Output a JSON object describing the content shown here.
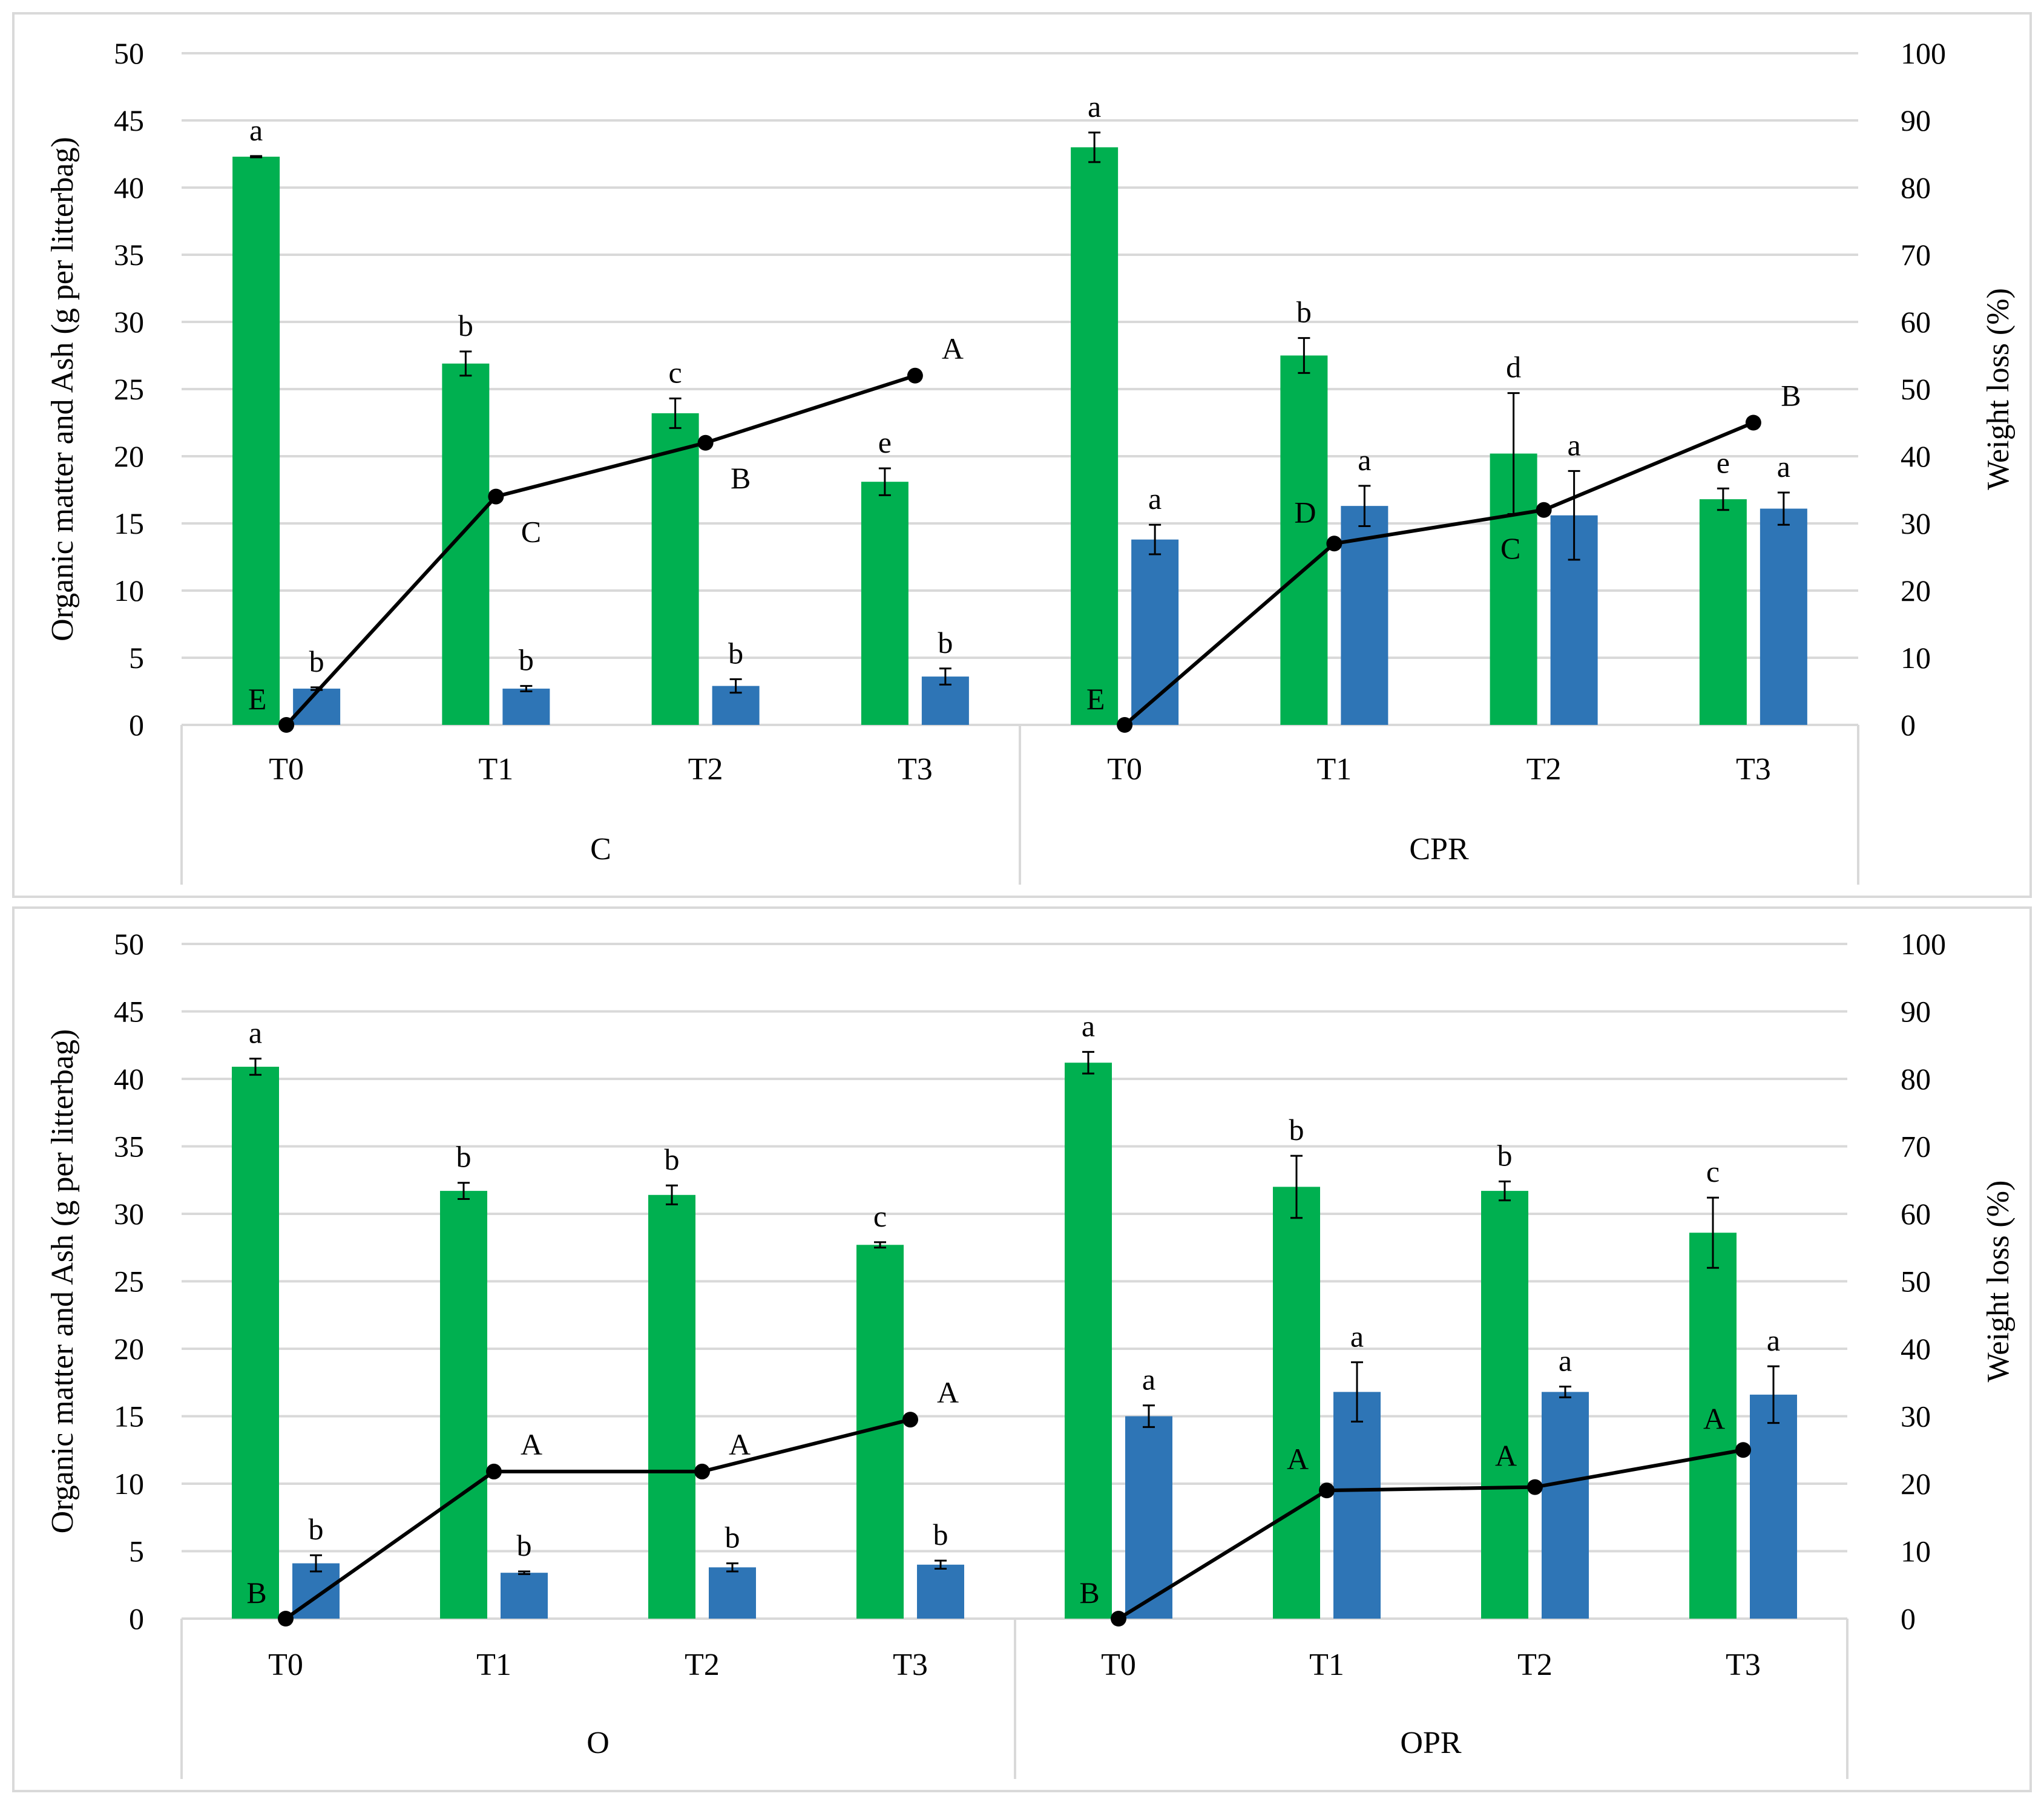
{
  "colors": {
    "organic_matter": "#00b050",
    "ash": "#2e75b6",
    "weight_loss": "#000000",
    "grid": "#d9d9d9"
  },
  "chart_data": [
    {
      "type": "bar",
      "panel": "top",
      "ylabel": "Organic matter and Ash (g per litterbag)",
      "y2label": "Weight loss (%)",
      "ylim": [
        0,
        50
      ],
      "y2lim": [
        0,
        100
      ],
      "yticks": [
        "0",
        "5",
        "10",
        "15",
        "20",
        "25",
        "30",
        "35",
        "40",
        "45",
        "50"
      ],
      "y2ticks": [
        "0",
        "10",
        "20",
        "30",
        "40",
        "50",
        "60",
        "70",
        "80",
        "90",
        "100"
      ],
      "groups": [
        {
          "name": "C",
          "categories": [
            "T0",
            "T1",
            "T2",
            "T3"
          ],
          "series": [
            {
              "name": "Organic matter",
              "axis": "left",
              "values": [
                42.3,
                26.9,
                23.2,
                18.1
              ],
              "errors": [
                0.05,
                0.9,
                1.1,
                1.0
              ],
              "letters": [
                "a",
                "b",
                "c",
                "e"
              ]
            },
            {
              "name": "Ash",
              "axis": "left",
              "values": [
                2.7,
                2.7,
                2.9,
                3.6
              ],
              "errors": [
                0.1,
                0.2,
                0.5,
                0.6
              ],
              "letters": [
                "b",
                "b",
                "b",
                "b"
              ]
            },
            {
              "name": "Weight loss",
              "axis": "right",
              "type": "line",
              "values": [
                0,
                34,
                42,
                52
              ],
              "letters": [
                "E",
                "C",
                "B",
                "A"
              ]
            }
          ]
        },
        {
          "name": "CPR",
          "categories": [
            "T0",
            "T1",
            "T2",
            "T3"
          ],
          "series": [
            {
              "name": "Organic matter",
              "axis": "left",
              "values": [
                43.0,
                27.5,
                20.2,
                16.8
              ],
              "errors": [
                1.1,
                1.3,
                4.5,
                0.8
              ],
              "letters": [
                "a",
                "b",
                "d",
                "e"
              ]
            },
            {
              "name": "Ash",
              "axis": "left",
              "values": [
                13.8,
                16.3,
                15.6,
                16.1
              ],
              "errors": [
                1.1,
                1.5,
                3.3,
                1.2
              ],
              "letters": [
                "a",
                "a",
                "a",
                "a"
              ]
            },
            {
              "name": "Weight loss",
              "axis": "right",
              "type": "line",
              "values": [
                0,
                27,
                32,
                45
              ],
              "letters": [
                "E",
                "D",
                "C",
                "B"
              ]
            }
          ]
        }
      ]
    },
    {
      "type": "bar",
      "panel": "bottom",
      "ylabel": "Organic matter and Ash (g per litterbag)",
      "y2label": "Weight loss (%)",
      "ylim": [
        0,
        50
      ],
      "y2lim": [
        0,
        100
      ],
      "yticks": [
        "0",
        "5",
        "10",
        "15",
        "20",
        "25",
        "30",
        "35",
        "40",
        "45",
        "50"
      ],
      "y2ticks": [
        "0",
        "10",
        "20",
        "30",
        "40",
        "50",
        "60",
        "70",
        "80",
        "90",
        "100"
      ],
      "groups": [
        {
          "name": "O",
          "categories": [
            "T0",
            "T1",
            "T2",
            "T3"
          ],
          "series": [
            {
              "name": "Organic matter",
              "axis": "left",
              "values": [
                40.9,
                31.7,
                31.4,
                27.7
              ],
              "errors": [
                0.6,
                0.6,
                0.7,
                0.2
              ],
              "letters": [
                "a",
                "b",
                "b",
                "c"
              ]
            },
            {
              "name": "Ash",
              "axis": "left",
              "values": [
                4.1,
                3.4,
                3.8,
                4.0
              ],
              "errors": [
                0.6,
                0.1,
                0.3,
                0.3
              ],
              "letters": [
                "b",
                "b",
                "b",
                "b"
              ]
            },
            {
              "name": "Weight loss",
              "axis": "right",
              "type": "line",
              "values": [
                0,
                21.8,
                21.8,
                29.5
              ],
              "letters": [
                "B",
                "A",
                "A",
                "A"
              ]
            }
          ]
        },
        {
          "name": "OPR",
          "categories": [
            "T0",
            "T1",
            "T2",
            "T3"
          ],
          "series": [
            {
              "name": "Organic matter",
              "axis": "left",
              "values": [
                41.2,
                32.0,
                31.7,
                28.6
              ],
              "errors": [
                0.8,
                2.3,
                0.7,
                2.6
              ],
              "letters": [
                "a",
                "b",
                "b",
                "c"
              ]
            },
            {
              "name": "Ash",
              "axis": "left",
              "values": [
                15.0,
                16.8,
                16.8,
                16.6
              ],
              "errors": [
                0.8,
                2.2,
                0.4,
                2.1
              ],
              "letters": [
                "a",
                "a",
                "a",
                "a"
              ]
            },
            {
              "name": "Weight loss",
              "axis": "right",
              "type": "line",
              "values": [
                0,
                19,
                19.5,
                25
              ],
              "letters": [
                "B",
                "A",
                "A",
                "A"
              ]
            }
          ]
        }
      ]
    }
  ]
}
